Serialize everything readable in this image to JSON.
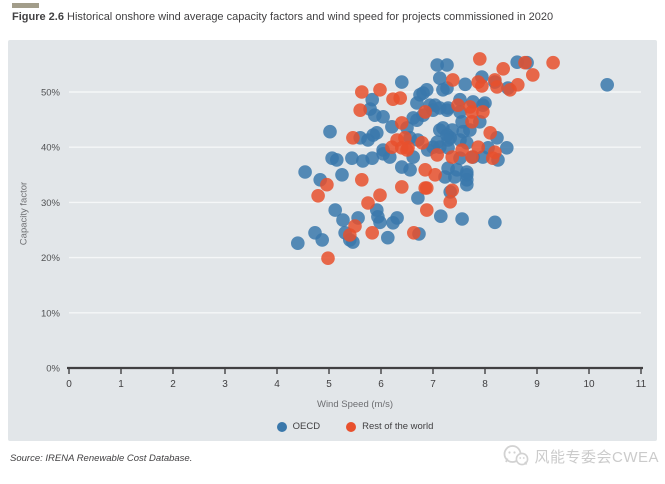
{
  "header": {
    "figure_label": "Figure 2.6",
    "title": " Historical onshore wind average capacity factors and wind speed for projects commissioned in 2020",
    "accent_color": "#a29d8a"
  },
  "chart_data": {
    "type": "scatter",
    "x_axis": {
      "title": "Wind Speed (m/s)",
      "min": 0,
      "max": 11,
      "ticks": [
        0,
        1,
        2,
        3,
        4,
        5,
        6,
        7,
        8,
        9,
        10,
        11
      ]
    },
    "y_axis": {
      "title": "Capacity factor",
      "min": 0,
      "max": 58,
      "tick_values": [
        0,
        10,
        20,
        30,
        40,
        50
      ],
      "tick_labels": [
        "0%",
        "10%",
        "20%",
        "30%",
        "40%",
        "50%"
      ]
    },
    "colors": {
      "oecd": "#3a78ab",
      "row": "#e8502d",
      "panel_bg": "#e2e6e9",
      "gridline": "#f5f7f8",
      "axis": "#414042",
      "tick_text": "#515254"
    },
    "legend_position": "bottom",
    "grid": "horizontal-only",
    "series": [
      {
        "name": "OECD",
        "color_key": "oecd",
        "points": [
          [
            7.08,
            54.9
          ],
          [
            7.27,
            54.9
          ],
          [
            8.62,
            55.4
          ],
          [
            8.81,
            55.3
          ],
          [
            10.35,
            51.3
          ],
          [
            6.4,
            51.8
          ],
          [
            7.13,
            52.5
          ],
          [
            7.62,
            51.4
          ],
          [
            7.94,
            52.7
          ],
          [
            8.19,
            51.8
          ],
          [
            8.44,
            50.7
          ],
          [
            7.27,
            50.7
          ],
          [
            6.81,
            49.8
          ],
          [
            7.19,
            50.4
          ],
          [
            6.88,
            50.4
          ],
          [
            6.75,
            49.5
          ],
          [
            6.69,
            48
          ],
          [
            7.04,
            47.6
          ],
          [
            7.13,
            47.1
          ],
          [
            7.96,
            47.6
          ],
          [
            7.52,
            48.6
          ],
          [
            7.77,
            48.2
          ],
          [
            8,
            48
          ],
          [
            6.94,
            47.6
          ],
          [
            7,
            46.7
          ],
          [
            5.83,
            48.6
          ],
          [
            5.79,
            46.9
          ],
          [
            5.88,
            45.8
          ],
          [
            6.04,
            45.5
          ],
          [
            6.62,
            45.3
          ],
          [
            7.27,
            46.7
          ],
          [
            7.52,
            46.4
          ],
          [
            7.29,
            47.1
          ],
          [
            6.5,
            43.5
          ],
          [
            6.21,
            43.7
          ],
          [
            6.69,
            44.9
          ],
          [
            6.81,
            45.8
          ],
          [
            7.56,
            44.6
          ],
          [
            7.9,
            44.6
          ],
          [
            7.19,
            43.5
          ],
          [
            7.37,
            43.1
          ],
          [
            7.58,
            42.8
          ],
          [
            7.71,
            43.1
          ],
          [
            8.23,
            41.7
          ],
          [
            7.33,
            41.7
          ],
          [
            7.52,
            41.3
          ],
          [
            7.13,
            43.1
          ],
          [
            7.27,
            42.2
          ],
          [
            8.06,
            39.9
          ],
          [
            8.42,
            39.9
          ],
          [
            7.29,
            39.9
          ],
          [
            7.13,
            40
          ],
          [
            7.96,
            38.2
          ],
          [
            5.02,
            42.8
          ],
          [
            5.6,
            41.7
          ],
          [
            5.75,
            41.3
          ],
          [
            5.92,
            42.6
          ],
          [
            5.85,
            42.2
          ],
          [
            6.56,
            41.7
          ],
          [
            6.71,
            41.3
          ],
          [
            6.04,
            39.5
          ],
          [
            6.17,
            38.2
          ],
          [
            7,
            40
          ],
          [
            6.9,
            39.5
          ],
          [
            7.08,
            40.9
          ],
          [
            7.29,
            41.3
          ],
          [
            7.65,
            40.8
          ],
          [
            6.62,
            38.2
          ],
          [
            6.4,
            36.4
          ],
          [
            6.56,
            35.9
          ],
          [
            7.23,
            34.6
          ],
          [
            7.46,
            35.9
          ],
          [
            7.65,
            35
          ],
          [
            8.25,
            37.7
          ],
          [
            7.65,
            33.2
          ],
          [
            5.06,
            38
          ],
          [
            5.44,
            38
          ],
          [
            5.65,
            37.5
          ],
          [
            5.83,
            38
          ],
          [
            6.04,
            38.8
          ],
          [
            4.54,
            35.5
          ],
          [
            5.25,
            35
          ],
          [
            4.83,
            34.1
          ],
          [
            5.15,
            37.7
          ],
          [
            5.27,
            26.8
          ],
          [
            5.12,
            28.6
          ],
          [
            5.56,
            27.2
          ],
          [
            5.92,
            28.6
          ],
          [
            5.94,
            27.4
          ],
          [
            6.31,
            27.2
          ],
          [
            5.31,
            24.5
          ],
          [
            5.46,
            22.8
          ],
          [
            5.98,
            26.4
          ],
          [
            6.23,
            26.3
          ],
          [
            6.13,
            23.6
          ],
          [
            6.73,
            24.3
          ],
          [
            4.73,
            24.5
          ],
          [
            4.4,
            22.6
          ],
          [
            4.87,
            23.2
          ],
          [
            5.4,
            23.2
          ],
          [
            7.15,
            27.5
          ],
          [
            7.56,
            27
          ],
          [
            8.19,
            26.4
          ],
          [
            7.29,
            36.2
          ],
          [
            7.65,
            35.5
          ],
          [
            7.42,
            34.6
          ],
          [
            7.65,
            34.1
          ],
          [
            7.33,
            31.9
          ],
          [
            6.71,
            30.8
          ],
          [
            7.52,
            38
          ],
          [
            7.77,
            38.2
          ]
        ]
      },
      {
        "name": "Rest of the world",
        "color_key": "row",
        "points": [
          [
            7.9,
            56
          ],
          [
            8.77,
            55.3
          ],
          [
            9.31,
            55.3
          ],
          [
            8.35,
            54.2
          ],
          [
            8.92,
            53.1
          ],
          [
            5.63,
            50
          ],
          [
            5.98,
            50.4
          ],
          [
            6.23,
            48.7
          ],
          [
            7.38,
            52.2
          ],
          [
            8.19,
            52.2
          ],
          [
            7.87,
            51.8
          ],
          [
            7.94,
            51.1
          ],
          [
            8.23,
            50.9
          ],
          [
            8.63,
            51.3
          ],
          [
            8.48,
            50.4
          ],
          [
            6.37,
            48.9
          ],
          [
            5.6,
            46.7
          ],
          [
            6.4,
            44.4
          ],
          [
            6.85,
            46.4
          ],
          [
            7.48,
            47.6
          ],
          [
            7.71,
            47.3
          ],
          [
            7.75,
            46.4
          ],
          [
            7.96,
            46.4
          ],
          [
            5.46,
            41.7
          ],
          [
            6.21,
            40
          ],
          [
            6.4,
            39.9
          ],
          [
            6.52,
            39.9
          ],
          [
            7.75,
            44.6
          ],
          [
            8.1,
            42.6
          ],
          [
            7.87,
            40
          ],
          [
            7.56,
            39.5
          ],
          [
            7.75,
            38.2
          ],
          [
            6.5,
            39.5
          ],
          [
            6.79,
            40.8
          ],
          [
            6.31,
            41.3
          ],
          [
            6.46,
            41.7
          ],
          [
            7.08,
            38.6
          ],
          [
            7.37,
            38.2
          ],
          [
            8.15,
            38
          ],
          [
            8.19,
            39.1
          ],
          [
            6.85,
            35.9
          ],
          [
            7.04,
            35
          ],
          [
            6.85,
            32.6
          ],
          [
            7.37,
            32.2
          ],
          [
            7.33,
            30.1
          ],
          [
            5.63,
            34.1
          ],
          [
            5.98,
            31.3
          ],
          [
            6.4,
            32.8
          ],
          [
            6.88,
            32.6
          ],
          [
            4.96,
            33.2
          ],
          [
            4.79,
            31.2
          ],
          [
            6.88,
            28.6
          ],
          [
            6.63,
            24.5
          ],
          [
            5.83,
            24.5
          ],
          [
            5.5,
            25.7
          ],
          [
            5.4,
            24.1
          ],
          [
            5.75,
            29.9
          ],
          [
            4.98,
            19.9
          ]
        ]
      }
    ]
  },
  "footer": {
    "source": "Source: IRENA Renewable Cost Database.",
    "watermark": "风能专委会CWEA"
  }
}
